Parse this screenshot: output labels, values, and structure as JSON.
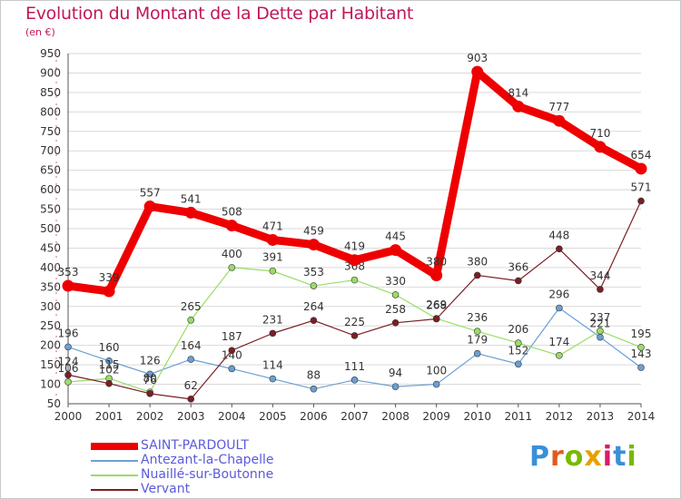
{
  "header": {
    "title": "Evolution du Montant de la Dette par Habitant",
    "unit": "(en €)"
  },
  "brand": "Proxiti",
  "colors": {
    "title": "#c0185a",
    "grid": "#d9d9d9",
    "axis": "#555555",
    "tick_text": "#333333",
    "legend_text": "#5a5adc"
  },
  "chart_data": {
    "type": "line",
    "x": [
      2000,
      2001,
      2002,
      2003,
      2004,
      2005,
      2006,
      2007,
      2008,
      2009,
      2010,
      2011,
      2012,
      2013,
      2014
    ],
    "ylim": [
      50,
      950
    ],
    "yticks": [
      50,
      100,
      150,
      200,
      250,
      300,
      350,
      400,
      450,
      500,
      550,
      600,
      650,
      700,
      750,
      800,
      850,
      900,
      950
    ],
    "grid": true,
    "legend": "bottom-left",
    "series": [
      {
        "name": "SAINT-PARDOULT",
        "color": "#ee0000",
        "width": 9,
        "values": [
          353,
          339,
          557,
          541,
          508,
          471,
          459,
          419,
          445,
          380,
          903,
          814,
          777,
          710,
          654
        ]
      },
      {
        "name": "Antezant-la-Chapelle",
        "color": "#6b9fd4",
        "width": 1.2,
        "values": [
          196,
          160,
          126,
          164,
          140,
          114,
          88,
          111,
          94,
          100,
          179,
          152,
          296,
          221,
          143
        ]
      },
      {
        "name": "Nuaillé-sur-Boutonne",
        "color": "#99dd66",
        "width": 1.2,
        "values": [
          106,
          115,
          80,
          265,
          400,
          391,
          353,
          368,
          330,
          269,
          236,
          206,
          174,
          237,
          195
        ]
      },
      {
        "name": "Vervant",
        "color": "#7a1f25",
        "width": 1.2,
        "values": [
          124,
          102,
          76,
          62,
          187,
          231,
          264,
          225,
          258,
          268,
          380,
          366,
          448,
          344,
          571
        ]
      }
    ]
  }
}
